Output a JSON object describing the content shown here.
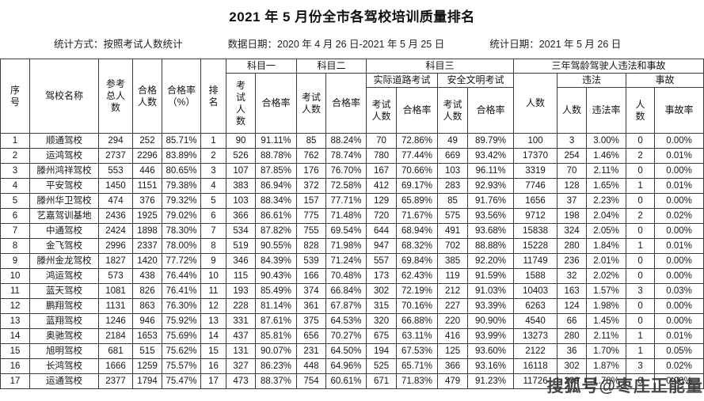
{
  "title": "2021 年 5 月份全市各驾校培训质量排名",
  "meta": {
    "stat_method": "统计方式：按照考试人数统计",
    "data_date": "数据日期：2020 年 4 月 26 日-2021 年 5 月 25 日",
    "stat_date": "统计日期：2021 年 5 月 26 日"
  },
  "watermark": "搜狐号@枣庄正能量",
  "table": {
    "headers": {
      "seq": "序\n号",
      "school": "驾校名称",
      "total": "参考\n总人\n数",
      "passed": "合格\n人数",
      "pass_rate_pct": "合格率\n（%）",
      "rank": "排\n名",
      "subject1": "科目一",
      "subject2": "科目二",
      "subject3": "科目三",
      "three_year": "三年驾龄驾驶人违法和事故",
      "exam_count_vertical": "考\n试\n人\n数",
      "exam_count": "考试\n人数",
      "pass_rate": "合格率",
      "road_test": "实际道路考试",
      "safety_test": "安全文明考试",
      "person_count": "人数",
      "violation": "违法",
      "accident": "事故",
      "violation_count": "人数",
      "violation_rate": "违法率",
      "accident_count": "人\n数",
      "accident_rate": "事故率"
    },
    "rows": [
      [
        "1",
        "顺通驾校",
        "294",
        "252",
        "85.71%",
        "1",
        "90",
        "91.11%",
        "85",
        "88.24%",
        "70",
        "72.86%",
        "49",
        "89.79%",
        "100",
        "3",
        "3.00%",
        "0",
        "0.00%"
      ],
      [
        "2",
        "运鸿驾校",
        "2737",
        "2296",
        "83.89%",
        "2",
        "526",
        "88.78%",
        "762",
        "78.74%",
        "780",
        "77.44%",
        "669",
        "93.42%",
        "17370",
        "254",
        "1.46%",
        "2",
        "0.01%"
      ],
      [
        "3",
        "滕州鸿祥驾校",
        "553",
        "446",
        "80.65%",
        "3",
        "107",
        "87.85%",
        "176",
        "76.70%",
        "167",
        "70.66%",
        "103",
        "96.11%",
        "3319",
        "70",
        "2.11%",
        "0",
        "0.00%"
      ],
      [
        "4",
        "平安驾校",
        "1450",
        "1151",
        "79.38%",
        "4",
        "383",
        "86.94%",
        "372",
        "72.58%",
        "412",
        "69.17%",
        "283",
        "92.93%",
        "7746",
        "128",
        "1.65%",
        "1",
        "0.01%"
      ],
      [
        "5",
        "滕州华卫驾校",
        "474",
        "376",
        "79.32%",
        "5",
        "103",
        "88.34%",
        "157",
        "77.71%",
        "129",
        "65.89%",
        "85",
        "91.76%",
        "1656",
        "37",
        "2.23%",
        "0",
        "0.00%"
      ],
      [
        "6",
        "艺嘉驾训基地",
        "2436",
        "1925",
        "79.02%",
        "6",
        "366",
        "86.61%",
        "775",
        "71.48%",
        "720",
        "71.67%",
        "575",
        "93.56%",
        "9712",
        "198",
        "2.04%",
        "2",
        "0.02%"
      ],
      [
        "7",
        "中通驾校",
        "2424",
        "1898",
        "78.30%",
        "7",
        "534",
        "87.82%",
        "755",
        "69.54%",
        "644",
        "68.94%",
        "491",
        "93.68%",
        "15838",
        "324",
        "2.05%",
        "0",
        "0.00%"
      ],
      [
        "8",
        "金飞驾校",
        "2996",
        "2337",
        "78.00%",
        "8",
        "519",
        "90.55%",
        "828",
        "71.98%",
        "947",
        "68.32%",
        "702",
        "88.88%",
        "15228",
        "280",
        "1.84%",
        "1",
        "0.01%"
      ],
      [
        "9",
        "滕州金龙驾校",
        "1827",
        "1420",
        "77.72%",
        "9",
        "346",
        "84.39%",
        "539",
        "71.24%",
        "557",
        "69.84%",
        "385",
        "92.20%",
        "11749",
        "236",
        "2.01%",
        "0",
        "0.00%"
      ],
      [
        "10",
        "鸿运驾校",
        "573",
        "438",
        "76.44%",
        "10",
        "115",
        "90.43%",
        "166",
        "70.48%",
        "173",
        "62.43%",
        "119",
        "91.59%",
        "1588",
        "32",
        "2.02%",
        "0",
        "0.00%"
      ],
      [
        "11",
        "蓝天驾校",
        "1081",
        "826",
        "76.41%",
        "11",
        "193",
        "85.49%",
        "374",
        "66.84%",
        "302",
        "72.19%",
        "212",
        "91.03%",
        "10403",
        "163",
        "1.57%",
        "3",
        "0.03%"
      ],
      [
        "12",
        "鹏翔驾校",
        "1131",
        "863",
        "76.30%",
        "12",
        "228",
        "81.14%",
        "361",
        "67.87%",
        "315",
        "70.16%",
        "227",
        "93.39%",
        "6263",
        "124",
        "1.98%",
        "0",
        "0.00%"
      ],
      [
        "13",
        "蓝翔驾校",
        "1246",
        "946",
        "75.92%",
        "13",
        "331",
        "87.61%",
        "375",
        "64.53%",
        "320",
        "66.88%",
        "220",
        "90.90%",
        "4540",
        "66",
        "1.45%",
        "0",
        "0.00%"
      ],
      [
        "14",
        "奥驰驾校",
        "2184",
        "1653",
        "75.69%",
        "14",
        "437",
        "85.81%",
        "656",
        "70.27%",
        "675",
        "63.11%",
        "416",
        "93.99%",
        "13273",
        "280",
        "2.11%",
        "1",
        "0.01%"
      ],
      [
        "15",
        "旭明驾校",
        "681",
        "515",
        "75.62%",
        "15",
        "131",
        "90.07%",
        "231",
        "64.50%",
        "194",
        "67.53%",
        "125",
        "93.60%",
        "2122",
        "36",
        "1.70%",
        "1",
        "0.05%"
      ],
      [
        "16",
        "长鸿驾校",
        "1666",
        "1259",
        "75.57%",
        "16",
        "327",
        "86.23%",
        "448",
        "64.96%",
        "525",
        "65.71%",
        "366",
        "93.16%",
        "16118",
        "302",
        "1.87%",
        "3",
        "0.02%"
      ],
      [
        "17",
        "运通驾校",
        "2377",
        "1794",
        "75.47%",
        "17",
        "473",
        "88.37%",
        "754",
        "60.61%",
        "671",
        "71.83%",
        "479",
        "91.23%",
        "11726",
        "209",
        "1.78%",
        "0",
        "0.00%"
      ]
    ]
  }
}
